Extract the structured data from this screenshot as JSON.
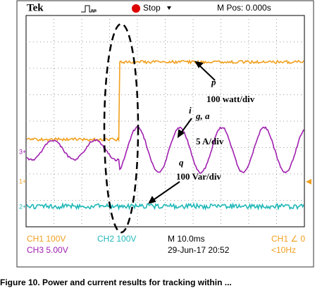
{
  "header": {
    "brand": "Tek",
    "state": "Stop",
    "position": "M Pos: 0.000s"
  },
  "markers": [
    "3+",
    "1+",
    "2+"
  ],
  "annotations": {
    "p": "p",
    "p_scale": "100 watt/div",
    "i": "i",
    "i_sub": "g, a",
    "i_scale": "5 A/div",
    "q": "q",
    "q_scale": "100 Var/div"
  },
  "footer": {
    "ch1": "CH1  100V",
    "ch2": "CH2  100V",
    "timebase": "M 10.0ms",
    "trigger": "CH1  ∠  0",
    "ch3": "CH3  5.00V",
    "date": "29-Jun-17  20:52",
    "freq": "<10Hz"
  },
  "caption": "Figure 10.  Power and current results for tracking within ..."
}
